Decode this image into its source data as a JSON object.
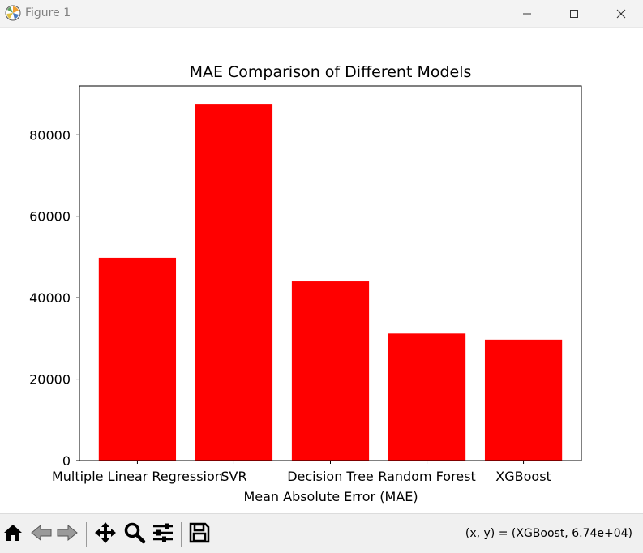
{
  "window": {
    "title": "Figure 1",
    "app_icon": "matplotlib-icon",
    "controls": [
      "minimize-icon",
      "maximize-icon",
      "close-icon"
    ]
  },
  "toolbar": {
    "tools": [
      "home-icon",
      "back-arrow-icon",
      "forward-arrow-icon",
      "pan-icon",
      "zoom-icon",
      "configure-subplots-icon",
      "save-icon"
    ],
    "coords_text": "(x, y) = (XGBoost, 6.74e+04)"
  },
  "chart_data": {
    "type": "bar",
    "title": "MAE Comparison of Different Models",
    "xlabel": "Mean Absolute Error (MAE)",
    "ylabel": "",
    "categories": [
      "Multiple Linear Regression",
      "SVR",
      "Decision Tree",
      "Random Forest",
      "XGBoost"
    ],
    "values": [
      49800,
      87600,
      44000,
      31200,
      29700
    ],
    "ylim": [
      0,
      92000
    ],
    "yticks": [
      0,
      20000,
      40000,
      60000,
      80000
    ],
    "bar_color": "#ff0000",
    "grid": false,
    "legend": "none"
  }
}
